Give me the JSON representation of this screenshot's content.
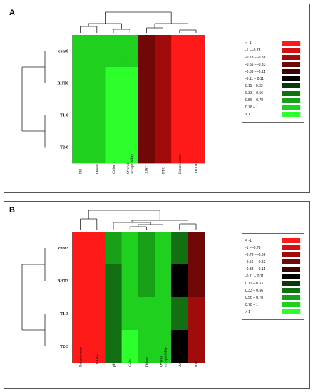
{
  "legend": {
    "labels": [
      "< -1",
      "-1 – -0.78",
      "-0.78 – -0.56",
      "-0.56 – -0.33",
      "-0.33 – -0.11",
      "-0.11 – 0.11",
      "0.11 – 0.33",
      "0.33 – 0.56",
      "0.56 – 0.78",
      "0.78 – 1",
      "> 1"
    ],
    "colors": [
      "#ff1a1a",
      "#d41010",
      "#a00c0c",
      "#700808",
      "#3c0404",
      "#000000",
      "#0a3a0a",
      "#127012",
      "#18a018",
      "#1fd01f",
      "#2cff2c"
    ]
  },
  "chart_data": [
    {
      "type": "heatmap",
      "panel_label": "A",
      "rows": [
        "cont0",
        "BHT0",
        "T1-0",
        "T2-0"
      ],
      "columns": [
        "PH",
        "Odour",
        "Color",
        "Overall acceptability",
        "APC",
        "PTC",
        "Enterobacter",
        "TBARS"
      ],
      "values": [
        [
          0.78,
          0.78,
          0.78,
          0.78,
          -0.56,
          -0.78,
          -1.2,
          -1.2
        ],
        [
          0.78,
          0.85,
          1.2,
          1.2,
          -0.56,
          -0.78,
          -1.2,
          -1.2
        ],
        [
          0.78,
          0.85,
          1.2,
          1.2,
          -0.56,
          -0.78,
          -1.2,
          -1.2
        ],
        [
          0.78,
          0.85,
          1.2,
          1.2,
          -0.56,
          -0.78,
          -1.2,
          -1.2
        ]
      ],
      "row_dendrogram": "left",
      "column_dendrogram": "top"
    },
    {
      "type": "heatmap",
      "panel_label": "B",
      "rows": [
        "cont3",
        "BHT3",
        "T1-3",
        "T2-3"
      ],
      "columns": [
        "Enterobacter",
        "TBARS",
        "pH",
        "Color",
        "Odour",
        "Overall acceptability",
        "ACP",
        "PTC"
      ],
      "values": [
        [
          -1.2,
          -1.2,
          0.56,
          0.78,
          0.56,
          0.78,
          0.33,
          -0.45
        ],
        [
          -1.2,
          -1.2,
          0.33,
          0.78,
          0.56,
          0.78,
          0.0,
          -0.45
        ],
        [
          -1.2,
          -1.2,
          0.33,
          0.78,
          0.78,
          0.78,
          0.33,
          -0.78
        ],
        [
          -1.2,
          -1.2,
          0.33,
          1.2,
          0.78,
          0.78,
          0.0,
          -0.78
        ]
      ],
      "row_dendrogram": "left",
      "column_dendrogram": "top"
    }
  ]
}
